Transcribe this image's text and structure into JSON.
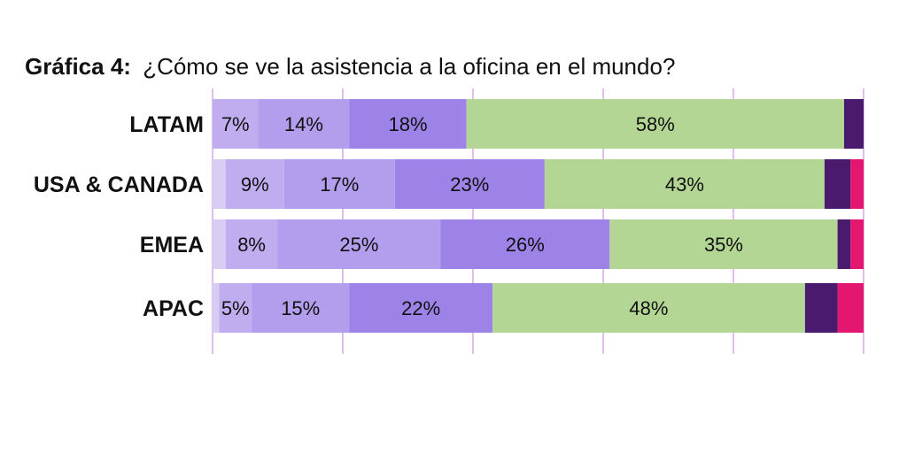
{
  "chart_data": {
    "type": "bar",
    "orientation": "horizontal",
    "stacked": true,
    "title_prefix": "Gráfica 4:",
    "title_text": "¿Cómo se ve la asistencia a la oficina en el mundo?",
    "xlabel": "",
    "ylabel": "",
    "xlim": [
      0,
      100
    ],
    "grid": true,
    "legend": "none",
    "categories": [
      "LATAM",
      "USA & CANADA",
      "EMEA",
      "APAC"
    ],
    "series": [
      {
        "color": "#d9cdf4",
        "values": [
          0,
          2,
          2,
          1
        ]
      },
      {
        "color": "#c0adf0",
        "values": [
          7,
          9,
          8,
          5
        ]
      },
      {
        "color": "#b39eee",
        "values": [
          14,
          17,
          25,
          15
        ]
      },
      {
        "color": "#9d83e8",
        "values": [
          18,
          23,
          26,
          22
        ]
      },
      {
        "color": "#b3d694",
        "values": [
          58,
          43,
          35,
          48
        ]
      },
      {
        "color": "#4a1a6e",
        "values": [
          3,
          4,
          2,
          5
        ]
      },
      {
        "color": "#e3176f",
        "values": [
          0,
          2,
          2,
          4
        ]
      }
    ],
    "data_labels": [
      [
        "",
        "7%",
        "14%",
        "18%",
        "58%",
        "",
        ""
      ],
      [
        "",
        "9%",
        "17%",
        "23%",
        "43%",
        "",
        ""
      ],
      [
        "",
        "8%",
        "25%",
        "26%",
        "35%",
        "",
        ""
      ],
      [
        "",
        "5%",
        "15%",
        "22%",
        "48%",
        "",
        ""
      ]
    ],
    "gridline_color": "#d8a9e6"
  }
}
